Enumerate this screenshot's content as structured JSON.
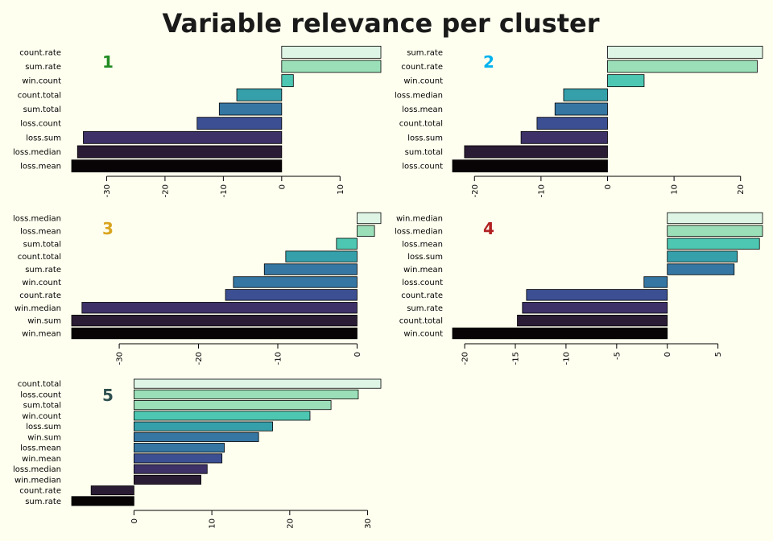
{
  "title": "Variable relevance per cluster",
  "colors": {
    "background": "#fffff0",
    "palette": [
      "#080405",
      "#2b1c35",
      "#3d3168",
      "#3c4f92",
      "#3576a3",
      "#35a0aa",
      "#4dc7b1",
      "#9bdfb9",
      "#def5e5"
    ]
  },
  "chart_data": [
    {
      "type": "bar",
      "orientation": "horizontal",
      "cluster": "1",
      "cluster_color": "#228b22",
      "categories": [
        "count.rate",
        "sum.rate",
        "win.count",
        "count.total",
        "sum.total",
        "loss.count",
        "loss.sum",
        "loss.median",
        "loss.mean"
      ],
      "values": [
        17,
        17,
        2,
        -7.7,
        -10.7,
        -14.5,
        -34,
        -35,
        -36
      ],
      "xlim": [
        -36,
        17
      ],
      "ticks": [
        "-30",
        "-20",
        "-10",
        "0",
        "10"
      ]
    },
    {
      "type": "bar",
      "orientation": "horizontal",
      "cluster": "2",
      "cluster_color": "#00b2ee",
      "categories": [
        "sum.rate",
        "count.rate",
        "win.count",
        "loss.median",
        "loss.mean",
        "count.total",
        "loss.sum",
        "sum.total",
        "loss.count"
      ],
      "values": [
        23.3,
        22.5,
        5.5,
        -6.6,
        -7.9,
        -10.6,
        -13,
        -21.5,
        -23.3
      ],
      "xlim": [
        -23.3,
        23.3
      ],
      "ticks": [
        "-20",
        "-10",
        "0",
        "10",
        "20"
      ]
    },
    {
      "type": "bar",
      "orientation": "horizontal",
      "cluster": "3",
      "cluster_color": "#daa520",
      "categories": [
        "loss.median",
        "loss.mean",
        "sum.total",
        "count.total",
        "sum.rate",
        "win.count",
        "count.rate",
        "win.median",
        "win.sum",
        "win.mean"
      ],
      "values": [
        3,
        2.2,
        -2.6,
        -9,
        -11.7,
        -15.6,
        -16.6,
        -34.7,
        -36,
        -36
      ],
      "xlim": [
        -36,
        3
      ],
      "ticks": [
        "-30",
        "-20",
        "-10",
        "0"
      ]
    },
    {
      "type": "bar",
      "orientation": "horizontal",
      "cluster": "4",
      "cluster_color": "#b22222",
      "categories": [
        "win.median",
        "loss.median",
        "loss.mean",
        "loss.sum",
        "win.mean",
        "loss.count",
        "count.rate",
        "sum.rate",
        "count.total",
        "win.count"
      ],
      "values": [
        9.4,
        9.4,
        9.1,
        6.9,
        6.6,
        -2.3,
        -13.9,
        -14.3,
        -14.8,
        -21.2
      ],
      "xlim": [
        -21.2,
        9.4
      ],
      "ticks": [
        "-20",
        "-15",
        "-10",
        "-5",
        "0",
        "5"
      ]
    },
    {
      "type": "bar",
      "orientation": "horizontal",
      "cluster": "5",
      "cluster_color": "#2f4f4f",
      "categories": [
        "count.total",
        "loss.count",
        "sum.total",
        "win.count",
        "loss.sum",
        "win.sum",
        "loss.mean",
        "win.mean",
        "loss.median",
        "win.median",
        "count.rate",
        "sum.rate"
      ],
      "values": [
        31.7,
        28.8,
        25.3,
        22.6,
        17.8,
        16,
        11.6,
        11.3,
        9.4,
        8.6,
        -5.5,
        -8
      ],
      "xlim": [
        -8,
        31.7
      ],
      "ticks": [
        "0",
        "10",
        "20",
        "30"
      ]
    }
  ]
}
